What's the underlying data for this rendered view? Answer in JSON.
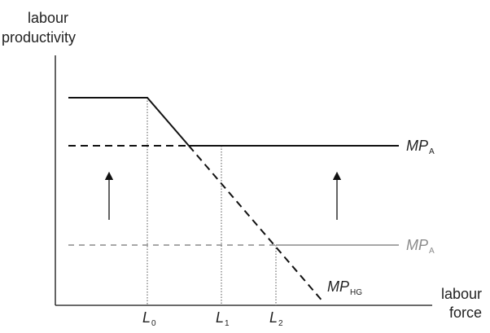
{
  "y_axis_label": {
    "line1": "labour",
    "line2": "productivity"
  },
  "x_axis_label": {
    "line1": "labour",
    "line2": "force"
  },
  "curves": {
    "mp_a_upper": {
      "main": "MP",
      "sub": "A"
    },
    "mp_a_lower": {
      "main": "MP",
      "sub": "A"
    },
    "mp_hg": {
      "main": "MP",
      "sub": "HG"
    }
  },
  "ticks": [
    {
      "main": "L",
      "sub": "0"
    },
    {
      "main": "L",
      "sub": "1"
    },
    {
      "main": "L",
      "sub": "2"
    }
  ],
  "colors": {
    "dark": "#111111",
    "gray": "#8a8a8a"
  }
}
